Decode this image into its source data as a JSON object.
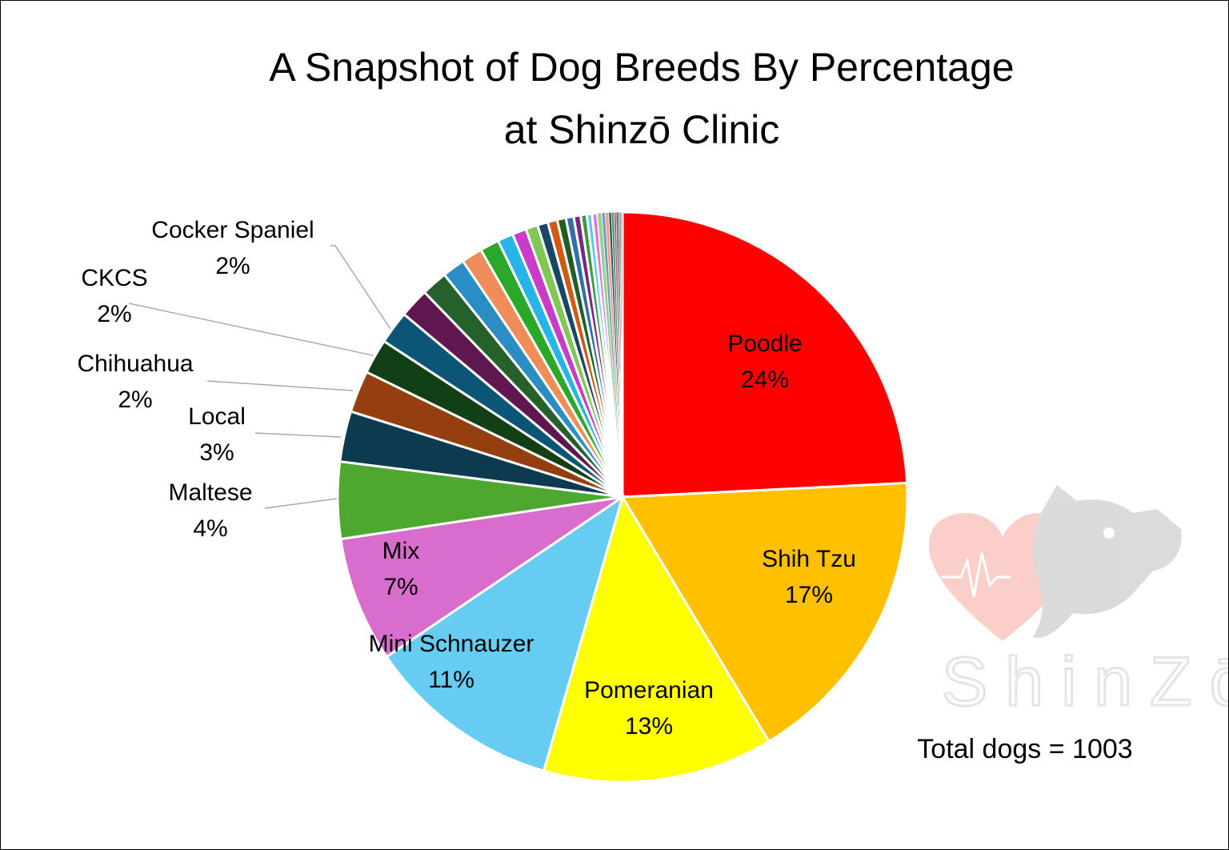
{
  "chart_data": {
    "type": "pie",
    "title_lines": [
      "A Snapshot of Dog Breeds By Percentage",
      "at Shinzō Clinic"
    ],
    "start_angle_deg": 0,
    "direction": "clockwise",
    "legend": "none",
    "slices": [
      {
        "name": "Poodle",
        "label": "24%",
        "value": 24.5,
        "color": "#ff0000",
        "label_position": "inside"
      },
      {
        "name": "Shih Tzu",
        "label": "17%",
        "value": 17.4,
        "color": "#ffc000",
        "label_position": "inside"
      },
      {
        "name": "Pomeranian",
        "label": "13%",
        "value": 13.2,
        "color": "#ffff00",
        "label_position": "inside"
      },
      {
        "name": "Mini Schnauzer",
        "label": "11%",
        "value": 11.2,
        "color": "#66ccf2",
        "label_position": "inside"
      },
      {
        "name": "Mix",
        "label": "7%",
        "value": 7.2,
        "color": "#d86dcd",
        "label_position": "inside"
      },
      {
        "name": "Maltese",
        "label": "4%",
        "value": 4.4,
        "color": "#4ea72e",
        "label_position": "outside"
      },
      {
        "name": "Local",
        "label": "3%",
        "value": 2.9,
        "color": "#0e3a50",
        "label_position": "outside"
      },
      {
        "name": "Chihuahua",
        "label": "2%",
        "value": 2.4,
        "color": "#953f10",
        "label_position": "outside"
      },
      {
        "name": "CKCS",
        "label": "2%",
        "value": 2.0,
        "color": "#123f14",
        "label_position": "outside"
      },
      {
        "name": "Cocker Spaniel",
        "label": "2%",
        "value": 1.9,
        "color": "#0b5576",
        "label_position": "outside"
      },
      {
        "name": "",
        "label": "",
        "value": 1.7,
        "color": "#60174f"
      },
      {
        "name": "",
        "label": "",
        "value": 1.5,
        "color": "#26602a"
      },
      {
        "name": "",
        "label": "",
        "value": 1.3,
        "color": "#2a8ec4"
      },
      {
        "name": "",
        "label": "",
        "value": 1.2,
        "color": "#f08c5a"
      },
      {
        "name": "",
        "label": "",
        "value": 1.1,
        "color": "#2aa82a"
      },
      {
        "name": "",
        "label": "",
        "value": 0.9,
        "color": "#27b4e8"
      },
      {
        "name": "",
        "label": "",
        "value": 0.8,
        "color": "#c83cc8"
      },
      {
        "name": "",
        "label": "",
        "value": 0.7,
        "color": "#7fc855"
      },
      {
        "name": "",
        "label": "",
        "value": 0.6,
        "color": "#1a4766"
      },
      {
        "name": "",
        "label": "",
        "value": 0.55,
        "color": "#d05a14"
      },
      {
        "name": "",
        "label": "",
        "value": 0.5,
        "color": "#1f5f25"
      },
      {
        "name": "",
        "label": "",
        "value": 0.45,
        "color": "#3070a8"
      },
      {
        "name": "",
        "label": "",
        "value": 0.4,
        "color": "#7a2a7a"
      },
      {
        "name": "",
        "label": "",
        "value": 0.35,
        "color": "#3c9a3c"
      },
      {
        "name": "",
        "label": "",
        "value": 0.3,
        "color": "#5ac8f0"
      },
      {
        "name": "",
        "label": "",
        "value": 0.3,
        "color": "#e070e0"
      },
      {
        "name": "",
        "label": "",
        "value": 0.25,
        "color": "#9ad28a"
      },
      {
        "name": "",
        "label": "",
        "value": 0.2,
        "color": "#6aa0c8"
      },
      {
        "name": "",
        "label": "",
        "value": 0.2,
        "color": "#f0a080"
      },
      {
        "name": "",
        "label": "",
        "value": 0.15,
        "color": "#205070"
      },
      {
        "name": "",
        "label": "",
        "value": 0.15,
        "color": "#509050"
      },
      {
        "name": "",
        "label": "",
        "value": 0.12,
        "color": "#a05090"
      },
      {
        "name": "",
        "label": "",
        "value": 0.1,
        "color": "#3a3a3a"
      },
      {
        "name": "",
        "label": "",
        "value": 0.1,
        "color": "#5a5a5a"
      },
      {
        "name": "",
        "label": "",
        "value": 0.08,
        "color": "#707070"
      },
      {
        "name": "",
        "label": "",
        "value": 0.08,
        "color": "#888888"
      }
    ],
    "annotation": "Total dogs = 1003"
  },
  "watermark": {
    "text": "ShinZō",
    "heart_color": "#f6a8a0",
    "dog_color": "#bdbdbd"
  }
}
